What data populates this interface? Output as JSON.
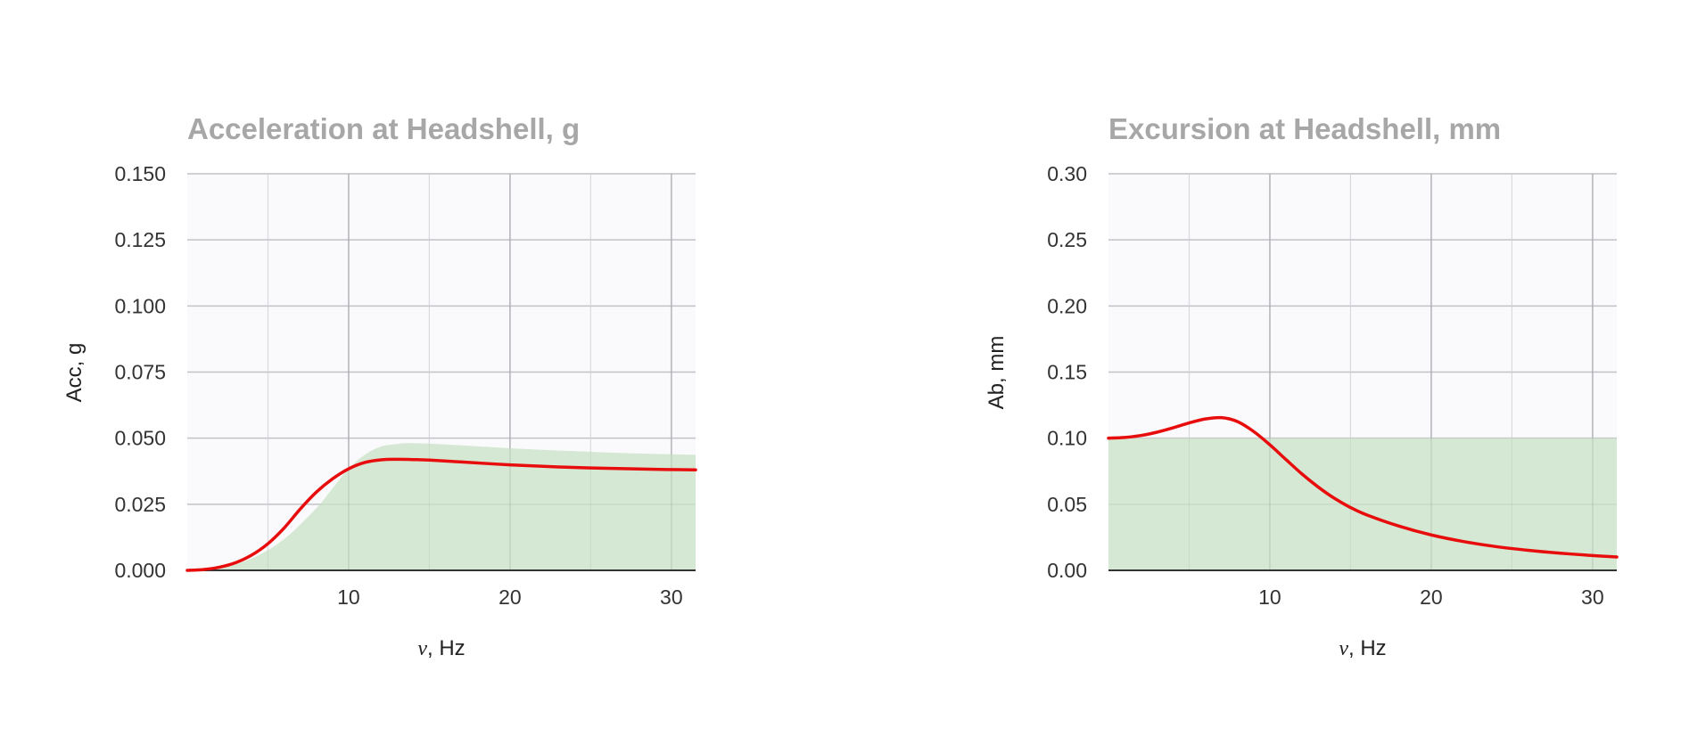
{
  "colors": {
    "curve": "#e80d0d",
    "band": "#d5e8d4",
    "plot_bg": "#faf9fb",
    "grid_major": "#cfcfd4",
    "grid_minor": "#e6e6ea",
    "axis": "#333333",
    "title": "#a7a7a7"
  },
  "chart_data": [
    {
      "type": "line",
      "title": "Acceleration at Headshell, g",
      "xlabel": "ν, Hz",
      "xlabel_symbol": "ν",
      "xlabel_rest": ", Hz",
      "ylabel": "Acc, g",
      "xlim": [
        0,
        31.5
      ],
      "ylim": [
        0,
        0.15
      ],
      "x_ticks": [
        10,
        20,
        30
      ],
      "x_tick_labels": [
        "10",
        "20",
        "30"
      ],
      "y_ticks": [
        0,
        0.025,
        0.05,
        0.075,
        0.1,
        0.125,
        0.15
      ],
      "y_tick_labels": [
        "0.000",
        "0.025",
        "0.050",
        "0.075",
        "0.100",
        "0.125",
        "0.150"
      ],
      "grid": true,
      "band": {
        "x": [
          0,
          2,
          4,
          6,
          8,
          9,
          10,
          11,
          12,
          13,
          14,
          16,
          18,
          20,
          22,
          24,
          26,
          28,
          30,
          31.5
        ],
        "y": [
          0,
          0.0009,
          0.0045,
          0.0118,
          0.0235,
          0.031,
          0.0385,
          0.0437,
          0.0468,
          0.0478,
          0.0481,
          0.0476,
          0.0469,
          0.0462,
          0.0456,
          0.0451,
          0.0446,
          0.0442,
          0.0439,
          0.0437
        ]
      },
      "series": [
        {
          "x": [
            0,
            1,
            2,
            3,
            4,
            5,
            6,
            7,
            8,
            9,
            10,
            11,
            12,
            13,
            14,
            15,
            17,
            20,
            23,
            26,
            29,
            31.5
          ],
          "y": [
            0,
            0.0003,
            0.0012,
            0.0029,
            0.0058,
            0.0101,
            0.016,
            0.0232,
            0.0296,
            0.0346,
            0.0384,
            0.0408,
            0.0418,
            0.042,
            0.0419,
            0.0417,
            0.041,
            0.0399,
            0.0391,
            0.0386,
            0.0382,
            0.038
          ]
        }
      ]
    },
    {
      "type": "line",
      "title": "Excursion at Headshell, mm",
      "xlabel": "ν, Hz",
      "xlabel_symbol": "ν",
      "xlabel_rest": ", Hz",
      "ylabel": "Ab, mm",
      "xlim": [
        0,
        31.5
      ],
      "ylim": [
        0,
        0.3
      ],
      "x_ticks": [
        10,
        20,
        30
      ],
      "x_tick_labels": [
        "10",
        "20",
        "30"
      ],
      "y_ticks": [
        0,
        0.05,
        0.1,
        0.15,
        0.2,
        0.25,
        0.3
      ],
      "y_tick_labels": [
        "0.00",
        "0.05",
        "0.10",
        "0.15",
        "0.20",
        "0.25",
        "0.30"
      ],
      "grid": true,
      "band": {
        "x": [
          0,
          31.5
        ],
        "y": [
          0.1,
          0.1
        ]
      },
      "series": [
        {
          "x": [
            0,
            1,
            2,
            3,
            4,
            5,
            6,
            7,
            8,
            9,
            10,
            11,
            12,
            13,
            14,
            15,
            16,
            18,
            20,
            22,
            24,
            26,
            28,
            30,
            31.5
          ],
          "y": [
            0.1,
            0.1005,
            0.102,
            0.1045,
            0.1078,
            0.1115,
            0.1145,
            0.1155,
            0.1125,
            0.105,
            0.095,
            0.0838,
            0.0728,
            0.063,
            0.0545,
            0.0475,
            0.042,
            0.0335,
            0.0268,
            0.0218,
            0.018,
            0.0152,
            0.013,
            0.0112,
            0.0101
          ]
        }
      ]
    }
  ]
}
